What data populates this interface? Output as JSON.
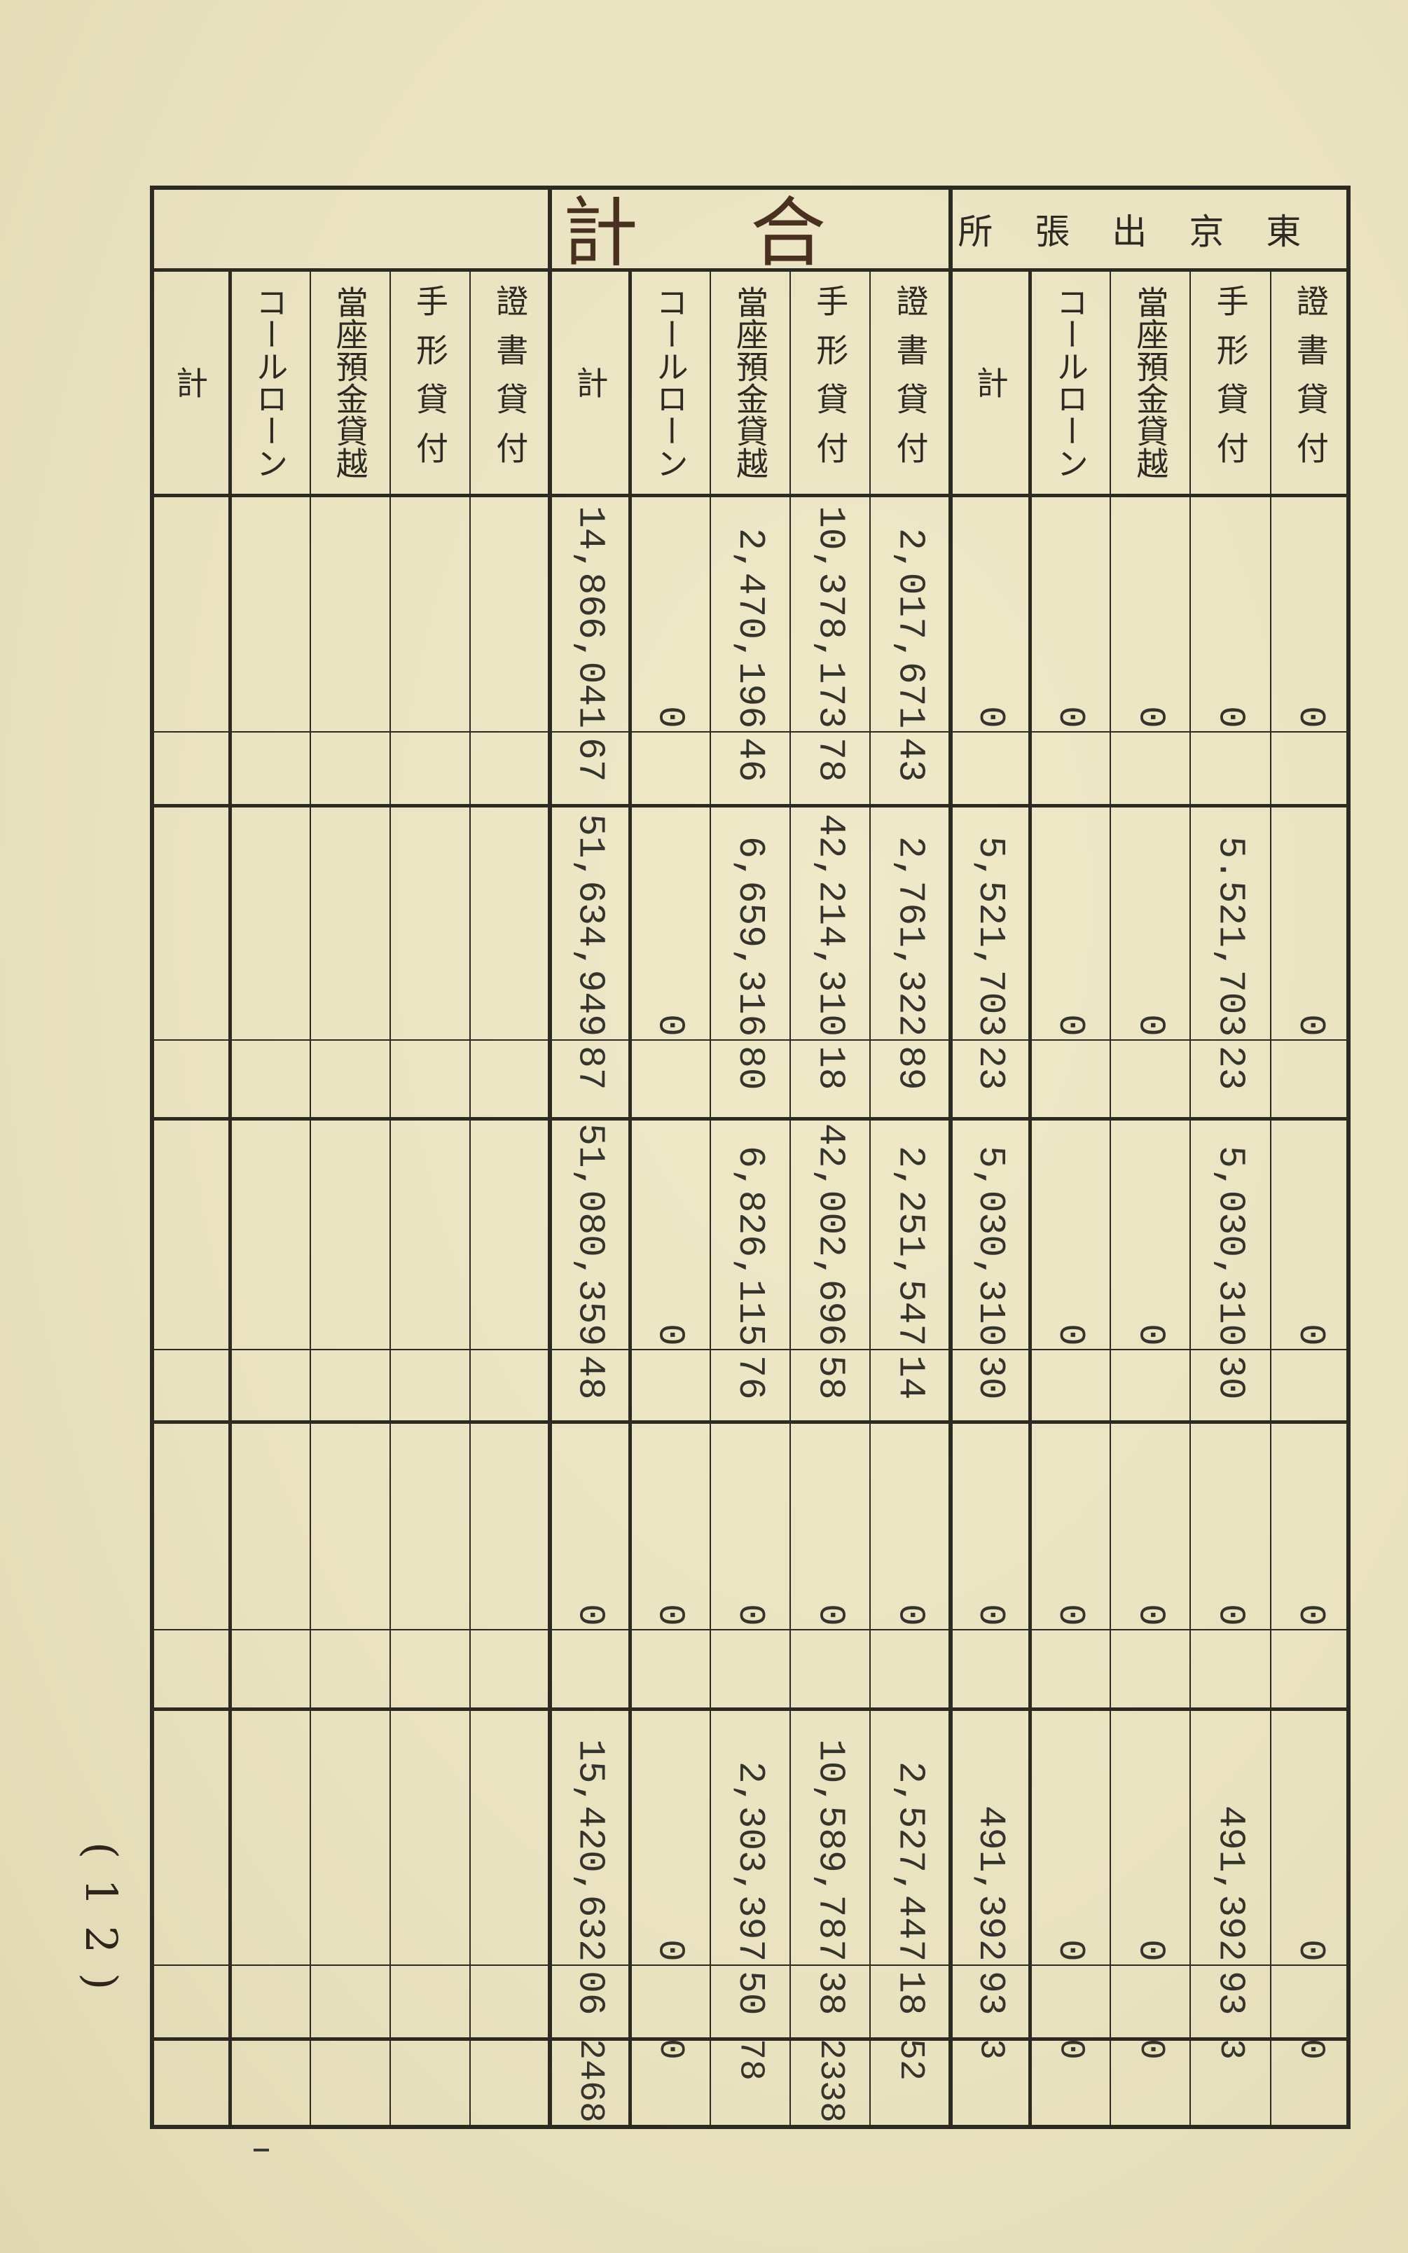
{
  "groups": [
    {
      "label": "東京出張所",
      "rows": [
        {
          "label": "證書貸付",
          "amounts": [
            {
              "yen": "0",
              "sen": ""
            },
            {
              "yen": "0",
              "sen": ""
            },
            {
              "yen": "0",
              "sen": ""
            },
            {
              "yen": "0",
              "sen": ""
            },
            {
              "yen": "0",
              "sen": ""
            }
          ],
          "extra": "0"
        },
        {
          "label": "手形貸付",
          "amounts": [
            {
              "yen": "0",
              "sen": ""
            },
            {
              "yen": "5.521,703",
              "sen": "23"
            },
            {
              "yen": "5,030,310",
              "sen": "30"
            },
            {
              "yen": "0",
              "sen": ""
            },
            {
              "yen": "491,392",
              "sen": "93"
            }
          ],
          "extra": "3"
        },
        {
          "label": "當座預金貸越",
          "amounts": [
            {
              "yen": "0",
              "sen": ""
            },
            {
              "yen": "0",
              "sen": ""
            },
            {
              "yen": "0",
              "sen": ""
            },
            {
              "yen": "0",
              "sen": ""
            },
            {
              "yen": "0",
              "sen": ""
            }
          ],
          "extra": "0"
        },
        {
          "label": "コールローン",
          "amounts": [
            {
              "yen": "0",
              "sen": ""
            },
            {
              "yen": "0",
              "sen": ""
            },
            {
              "yen": "0",
              "sen": ""
            },
            {
              "yen": "0",
              "sen": ""
            },
            {
              "yen": "0",
              "sen": ""
            }
          ],
          "extra": "0"
        },
        {
          "label": "計",
          "amounts": [
            {
              "yen": "0",
              "sen": ""
            },
            {
              "yen": "5,521,703",
              "sen": "23"
            },
            {
              "yen": "5,030,310",
              "sen": "30"
            },
            {
              "yen": "0",
              "sen": ""
            },
            {
              "yen": "491,392",
              "sen": "93"
            }
          ],
          "extra": "3"
        }
      ]
    },
    {
      "label": "合計",
      "handwritten": true,
      "rows": [
        {
          "label": "證書貸付",
          "amounts": [
            {
              "yen": "2,017,671",
              "sen": "43"
            },
            {
              "yen": "2,761,322",
              "sen": "89"
            },
            {
              "yen": "2,251,547",
              "sen": "14"
            },
            {
              "yen": "0",
              "sen": ""
            },
            {
              "yen": "2,527,447",
              "sen": "18"
            }
          ],
          "extra": "52"
        },
        {
          "label": "手形貸付",
          "amounts": [
            {
              "yen": "10,378,173",
              "sen": "78"
            },
            {
              "yen": "42,214,310",
              "sen": "18"
            },
            {
              "yen": "42,002,696",
              "sen": "58"
            },
            {
              "yen": "0",
              "sen": ""
            },
            {
              "yen": "10,589,787",
              "sen": "38"
            }
          ],
          "extra": "2338"
        },
        {
          "label": "當座預金貸越",
          "amounts": [
            {
              "yen": "2,470,196",
              "sen": "46"
            },
            {
              "yen": "6,659,316",
              "sen": "80"
            },
            {
              "yen": "6,826,115",
              "sen": "76"
            },
            {
              "yen": "0",
              "sen": ""
            },
            {
              "yen": "2,303,397",
              "sen": "50"
            }
          ],
          "extra": "78"
        },
        {
          "label": "コールローン",
          "amounts": [
            {
              "yen": "0",
              "sen": ""
            },
            {
              "yen": "0",
              "sen": ""
            },
            {
              "yen": "0",
              "sen": ""
            },
            {
              "yen": "0",
              "sen": ""
            },
            {
              "yen": "0",
              "sen": ""
            }
          ],
          "extra": "0"
        },
        {
          "label": "計",
          "amounts": [
            {
              "yen": "14,866,041",
              "sen": "67"
            },
            {
              "yen": "51,634,949",
              "sen": "87"
            },
            {
              "yen": "51,080,359",
              "sen": "48"
            },
            {
              "yen": "0",
              "sen": ""
            },
            {
              "yen": "15,420,632",
              "sen": "06"
            }
          ],
          "extra": "2468"
        }
      ]
    },
    {
      "label": "",
      "rows": [
        {
          "label": "證書貸付",
          "amounts": [
            {
              "yen": "",
              "sen": ""
            },
            {
              "yen": "",
              "sen": ""
            },
            {
              "yen": "",
              "sen": ""
            },
            {
              "yen": "",
              "sen": ""
            },
            {
              "yen": "",
              "sen": ""
            }
          ],
          "extra": ""
        },
        {
          "label": "手形貸付",
          "amounts": [
            {
              "yen": "",
              "sen": ""
            },
            {
              "yen": "",
              "sen": ""
            },
            {
              "yen": "",
              "sen": ""
            },
            {
              "yen": "",
              "sen": ""
            },
            {
              "yen": "",
              "sen": ""
            }
          ],
          "extra": ""
        },
        {
          "label": "當座預金貸越",
          "amounts": [
            {
              "yen": "",
              "sen": ""
            },
            {
              "yen": "",
              "sen": ""
            },
            {
              "yen": "",
              "sen": ""
            },
            {
              "yen": "",
              "sen": ""
            },
            {
              "yen": "",
              "sen": ""
            }
          ],
          "extra": ""
        },
        {
          "label": "コールローン",
          "amounts": [
            {
              "yen": "",
              "sen": ""
            },
            {
              "yen": "",
              "sen": ""
            },
            {
              "yen": "",
              "sen": ""
            },
            {
              "yen": "",
              "sen": ""
            },
            {
              "yen": "",
              "sen": ""
            }
          ],
          "extra": ""
        },
        {
          "label": "計",
          "amounts": [
            {
              "yen": "",
              "sen": ""
            },
            {
              "yen": "",
              "sen": ""
            },
            {
              "yen": "",
              "sen": ""
            },
            {
              "yen": "",
              "sen": ""
            },
            {
              "yen": "",
              "sen": ""
            }
          ],
          "extra": ""
        }
      ]
    }
  ],
  "page_number": "(12)",
  "colors": {
    "paper": "#ebe5c3",
    "ink": "#2c2a22",
    "handwriting": "#4a3020"
  }
}
